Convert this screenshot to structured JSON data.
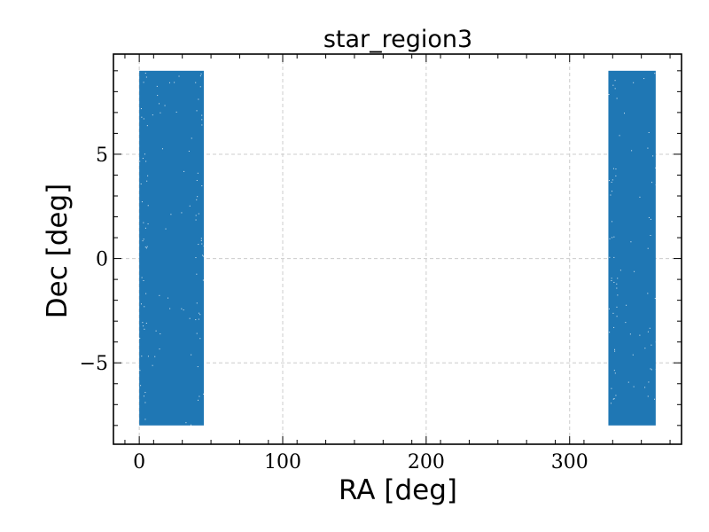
{
  "chart_data": {
    "type": "scatter",
    "title": "star_region3",
    "xlabel": "RA [deg]",
    "ylabel": "Dec [deg]",
    "xlim": [
      -18,
      378
    ],
    "ylim": [
      -8.9,
      9.8
    ],
    "xticks": [
      0,
      100,
      200,
      300
    ],
    "xtick_labels": [
      "0",
      "100",
      "200",
      "300"
    ],
    "yticks": [
      -5,
      0,
      5
    ],
    "ytick_labels": [
      "−5",
      "0",
      "5"
    ],
    "grid": true,
    "color": "#1f77b4",
    "series": [
      {
        "ra_range": [
          0,
          45
        ],
        "dec_range": [
          -8,
          9
        ]
      },
      {
        "ra_range": [
          327,
          360
        ],
        "dec_range": [
          -8,
          9
        ]
      }
    ]
  }
}
